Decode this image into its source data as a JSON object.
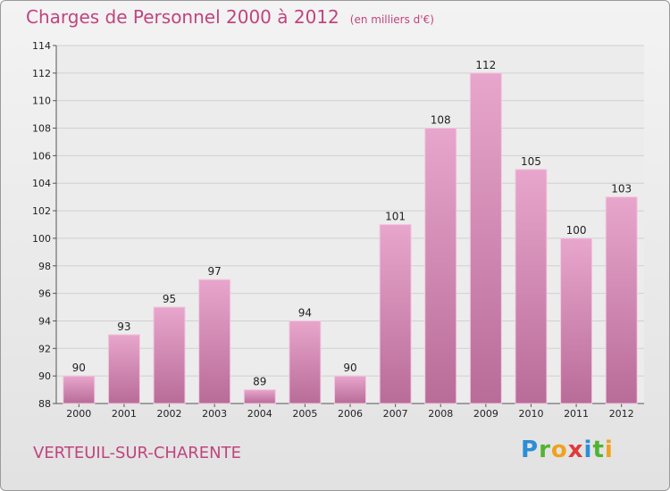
{
  "header": {
    "title": "Charges de Personnel 2000 à 2012",
    "unit": "(en milliers d'€)"
  },
  "footer": {
    "commune": "VERTEUIL-SUR-CHARENTE",
    "logo_text": "Proxiti"
  },
  "colors": {
    "accent": "#c0447f",
    "bar_top": "#e8a6cc",
    "bar_bottom": "#b86c98"
  },
  "chart_data": {
    "type": "bar",
    "title": "Charges de Personnel 2000 à 2012",
    "subtitle": "(en milliers d'€)",
    "xlabel": "",
    "ylabel": "",
    "categories": [
      "2000",
      "2001",
      "2002",
      "2003",
      "2004",
      "2005",
      "2006",
      "2007",
      "2008",
      "2009",
      "2010",
      "2011",
      "2012"
    ],
    "values": [
      90,
      93,
      95,
      97,
      89,
      94,
      90,
      101,
      108,
      112,
      105,
      100,
      103
    ],
    "ylim": [
      88,
      114
    ],
    "yticks": [
      88,
      90,
      92,
      94,
      96,
      98,
      100,
      102,
      104,
      106,
      108,
      110,
      112,
      114
    ],
    "grid": true,
    "legend": "none"
  }
}
